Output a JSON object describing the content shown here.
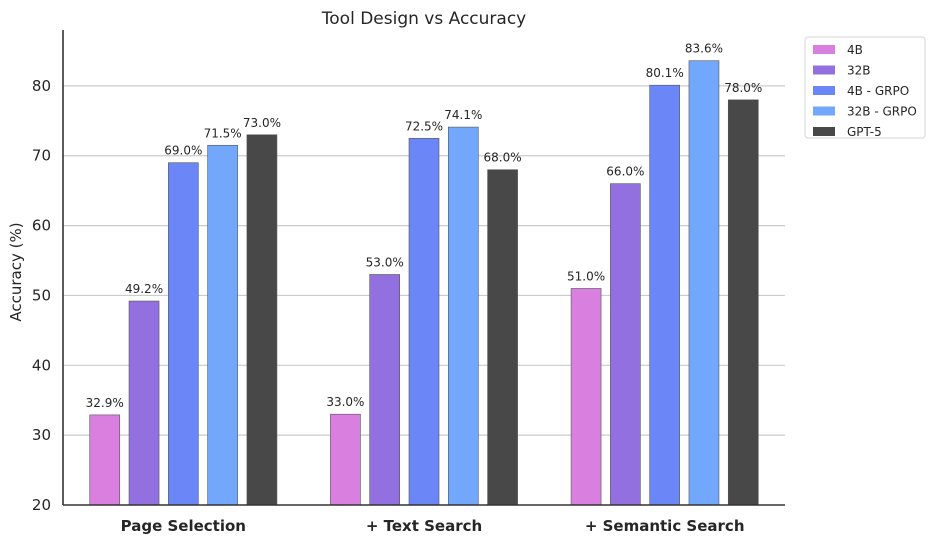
{
  "chart_data": {
    "type": "bar",
    "title": "Tool Design vs Accuracy",
    "xlabel": "",
    "ylabel": "Accuracy (%)",
    "ylim": [
      20,
      88
    ],
    "yticks": [
      20,
      30,
      40,
      50,
      60,
      70,
      80
    ],
    "grid": "horizontal",
    "legend_position": "outside-top-right",
    "categories": [
      "Page Selection",
      "+ Text Search",
      "+ Semantic Search"
    ],
    "series": [
      {
        "name": "4B",
        "color": "#d87fe0",
        "values": [
          32.9,
          33.0,
          51.0
        ],
        "labels": [
          "32.9%",
          "33.0%",
          "51.0%"
        ]
      },
      {
        "name": "32B",
        "color": "#9370e0",
        "values": [
          49.2,
          53.0,
          66.0
        ],
        "labels": [
          "49.2%",
          "53.0%",
          "66.0%"
        ]
      },
      {
        "name": "4B - GRPO",
        "color": "#6b86f7",
        "values": [
          69.0,
          72.5,
          80.1
        ],
        "labels": [
          "69.0%",
          "72.5%",
          "80.1%"
        ]
      },
      {
        "name": "32B - GRPO",
        "color": "#73a7fc",
        "values": [
          71.5,
          74.1,
          83.6
        ],
        "labels": [
          "71.5%",
          "74.1%",
          "83.6%"
        ]
      },
      {
        "name": "GPT-5",
        "color": "#484848",
        "values": [
          73.0,
          68.0,
          78.0
        ],
        "labels": [
          "73.0%",
          "68.0%",
          "78.0%"
        ]
      }
    ]
  }
}
